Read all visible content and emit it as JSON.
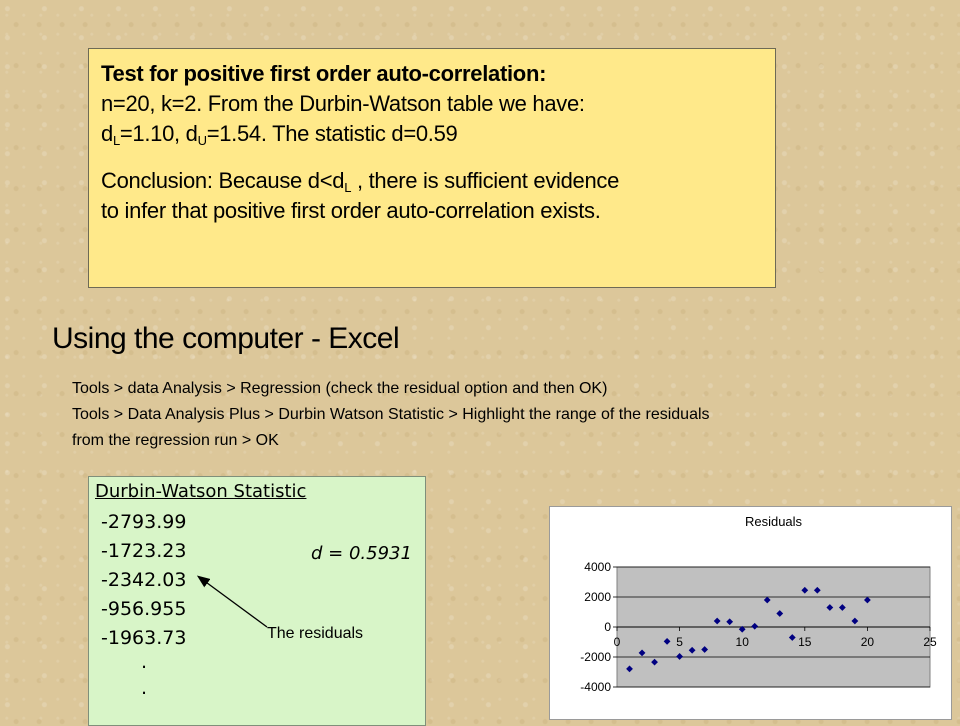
{
  "test_box": {
    "heading": "Test for positive first order auto-correlation:",
    "line2": "n=20, k=2.  From the Durbin-Watson table we have:",
    "line3_d": "d",
    "line3_L": "L",
    "line3_mid": "=1.10, d",
    "line3_U": "U",
    "line3_rest": "=1.54.  The statistic d=0.59",
    "conclusion_a": "Conclusion: Because d<d",
    "conclusion_L": "L",
    "conclusion_b": " , there is sufficient evidence",
    "conclusion_line2": "to infer that positive first order auto-correlation exists."
  },
  "section_title": "Using the computer - Excel",
  "instructions": [
    "Tools > data Analysis > Regression (check the residual option and then OK)",
    "Tools > Data Analysis Plus > Durbin Watson Statistic > Highlight the range of the residuals",
    "from the regression run > OK"
  ],
  "dw_output": {
    "title": "Durbin-Watson Statistic",
    "residuals": [
      "-2793.99",
      "-1723.23",
      "-2342.03",
      "-956.955",
      "-1963.73"
    ],
    "dots": [
      ".",
      "."
    ],
    "statistic": "d = 0.5931",
    "annotation": "The residuals"
  },
  "chart_data": {
    "type": "scatter",
    "title": "Residuals",
    "xlabel": "",
    "ylabel": "",
    "xlim": [
      0,
      25
    ],
    "ylim": [
      -4000,
      4000
    ],
    "xticks": [
      0,
      5,
      10,
      15,
      20,
      25
    ],
    "yticks": [
      4000,
      2000,
      0,
      -2000,
      -4000
    ],
    "grid": true,
    "legend": "none",
    "marker_color": "#000080",
    "plot_background": "#c0c0c0",
    "x": [
      1,
      2,
      3,
      4,
      5,
      6,
      7,
      8,
      9,
      10,
      11,
      12,
      13,
      14,
      15,
      16,
      17,
      18,
      19,
      20
    ],
    "y": [
      -2794,
      -1723,
      -2342,
      -957,
      -1964,
      -1550,
      -1500,
      400,
      350,
      -150,
      50,
      1800,
      900,
      -700,
      2450,
      2450,
      1300,
      1300,
      400,
      1800
    ]
  }
}
